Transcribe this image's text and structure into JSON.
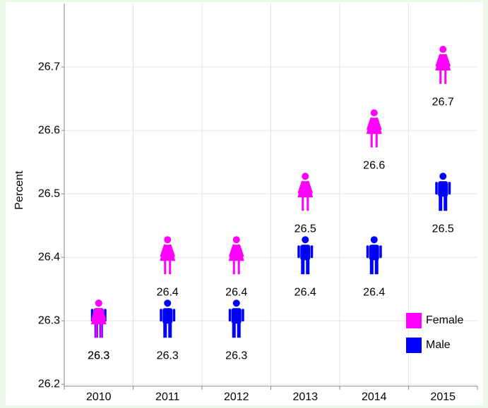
{
  "chart_data": {
    "type": "pictogram",
    "y_label": "Percent",
    "categories": [
      "2010",
      "2011",
      "2012",
      "2013",
      "2014",
      "2015"
    ],
    "series": [
      {
        "name": "Female",
        "color": "#ff00ff",
        "values": [
          26.3,
          26.4,
          26.4,
          26.5,
          26.6,
          26.7
        ]
      },
      {
        "name": "Male",
        "color": "#0000ff",
        "values": [
          26.3,
          26.3,
          26.3,
          26.4,
          26.4,
          26.5
        ]
      }
    ],
    "ylim": [
      26.197,
      26.8
    ],
    "yticks": [
      26.2,
      26.3,
      26.4,
      26.5,
      26.6,
      26.7
    ],
    "grid": true,
    "legend": "bottom-right"
  }
}
